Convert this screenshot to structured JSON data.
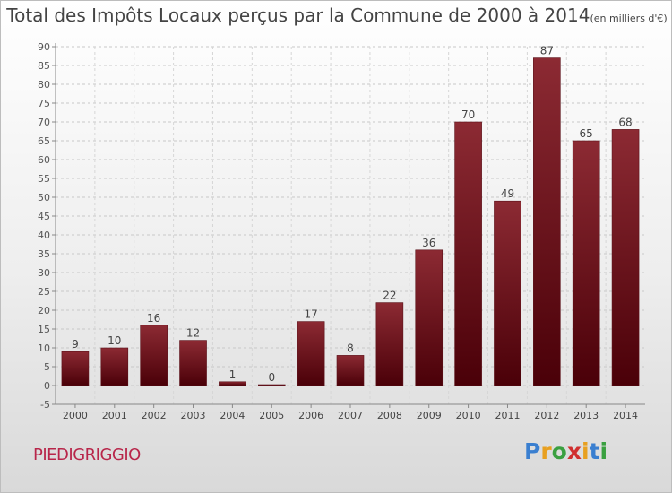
{
  "chart_data": {
    "type": "bar",
    "title": "Total des Impôts Locaux perçus par la Commune de 2000 à 2014",
    "subtitle": "(en milliers d'€)",
    "categories": [
      "2000",
      "2001",
      "2002",
      "2003",
      "2004",
      "2005",
      "2006",
      "2007",
      "2008",
      "2009",
      "2010",
      "2011",
      "2012",
      "2013",
      "2014"
    ],
    "values": [
      9,
      10,
      16,
      12,
      1,
      0,
      17,
      8,
      22,
      36,
      70,
      49,
      87,
      65,
      68
    ],
    "ylim": [
      -5,
      90
    ],
    "yticks": [
      -5,
      0,
      5,
      10,
      15,
      20,
      25,
      30,
      35,
      40,
      45,
      50,
      55,
      60,
      65,
      70,
      75,
      80,
      85,
      90
    ],
    "grid": true,
    "bar_color": "#7a1a22"
  },
  "commune_name": "PIEDIGRIGGIO",
  "logo": {
    "text": "Proxiti",
    "letter_colors": [
      "#3a7fd0",
      "#e8a020",
      "#3aa040",
      "#d03030",
      "#e8a020",
      "#3a7fd0",
      "#3aa040"
    ]
  }
}
